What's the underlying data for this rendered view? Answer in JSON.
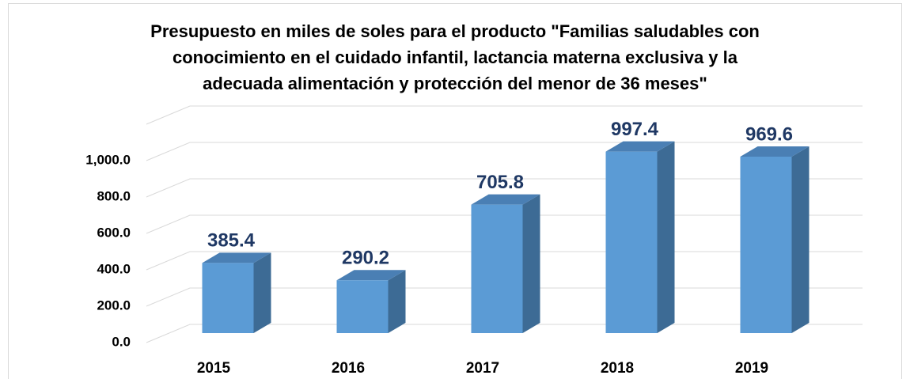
{
  "chart_data": {
    "type": "bar3d",
    "title": [
      "Presupuesto en miles de soles para el producto \"Familias saludables con",
      "conocimiento en el cuidado infantil, lactancia materna exclusiva y la",
      "adecuada alimentación y protección del menor de 36 meses\""
    ],
    "categories": [
      "2015",
      "2016",
      "2017",
      "2018",
      "2019"
    ],
    "values": [
      385.4,
      290.2,
      705.8,
      997.4,
      969.6
    ],
    "color": "#5b9bd5",
    "ylim": [
      0,
      1200
    ],
    "yticks": [
      {
        "value": 0,
        "label": "0.0"
      },
      {
        "value": 200,
        "label": "200.0"
      },
      {
        "value": 400,
        "label": "400.0"
      },
      {
        "value": 600,
        "label": "600.0"
      },
      {
        "value": 800,
        "label": "800.0"
      },
      {
        "value": 1000,
        "label": "1,000.0"
      }
    ],
    "grid": true
  }
}
